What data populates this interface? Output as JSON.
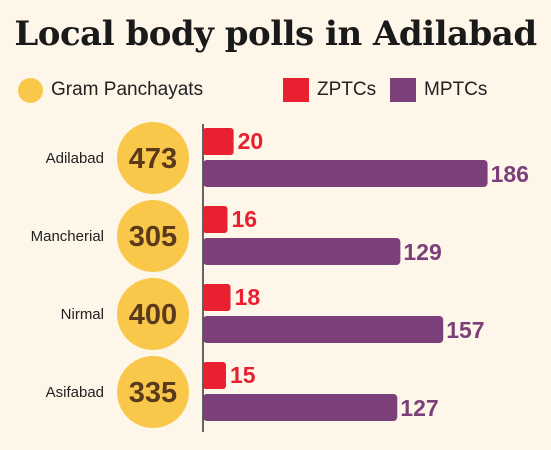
{
  "colors": {
    "background": "#fdf6e9",
    "gram_panchayats": "#f9c84a",
    "zptcs": "#e8202f",
    "mptcs": "#7b3f7a",
    "circle_text": "#5a3a1a",
    "axis": "#333333"
  },
  "chart_data": {
    "type": "bar",
    "title": "Local body polls in Adilabad",
    "legend": [
      {
        "name": "Gram Panchayats",
        "shape": "circle",
        "color": "#f9c84a"
      },
      {
        "name": "ZPTCs",
        "shape": "rect",
        "color": "#e8202f"
      },
      {
        "name": "MPTCs",
        "shape": "rect",
        "color": "#7b3f7a"
      }
    ],
    "legend_placement": "top",
    "orientation": "horizontal",
    "categories": [
      "Adilabad",
      "Mancherial",
      "Nirmal",
      "Asifabad"
    ],
    "series": [
      {
        "name": "Gram Panchayats",
        "values": [
          473,
          305,
          400,
          335
        ]
      },
      {
        "name": "ZPTCs",
        "values": [
          20,
          16,
          18,
          15
        ]
      },
      {
        "name": "MPTCs",
        "values": [
          186,
          129,
          157,
          127
        ]
      }
    ],
    "xlim": [
      0,
      200
    ],
    "grid": false
  }
}
